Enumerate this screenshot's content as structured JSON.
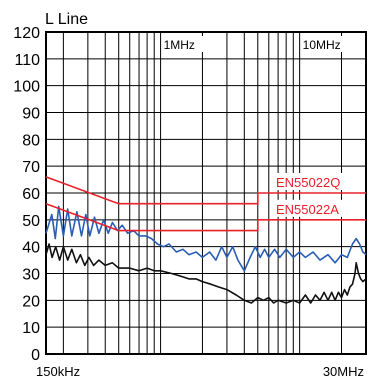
{
  "chart_data": {
    "type": "line",
    "title": "L Line",
    "x_scale": "log",
    "xlim_hz": [
      150000,
      30000000
    ],
    "ylim": [
      0,
      120
    ],
    "y_ticks": [
      0,
      10,
      20,
      30,
      40,
      50,
      60,
      70,
      80,
      90,
      100,
      110,
      120
    ],
    "y_tick_labels": [
      "0",
      "10",
      "20",
      "30",
      "40",
      "50",
      "60",
      "70",
      "80",
      "90",
      "100",
      "110",
      "120"
    ],
    "x_tick_labels": [
      {
        "hz": 150000,
        "label": "150kHz"
      },
      {
        "hz": 30000000,
        "label": "30MHz"
      }
    ],
    "top_labels": [
      {
        "hz": 1000000,
        "label": "1MHz"
      },
      {
        "hz": 10000000,
        "label": "10MHz"
      }
    ],
    "grid": true,
    "colors": {
      "limit": "#e8202a",
      "measured_peak": "#2a5db4",
      "measured_avg": "#111111",
      "grid": "#000000"
    },
    "limit_lines": [
      {
        "name": "EN55022Q",
        "points": [
          [
            150000,
            66
          ],
          [
            500000,
            56
          ],
          [
            5000000,
            56
          ],
          [
            5000000,
            60
          ],
          [
            30000000,
            60
          ]
        ]
      },
      {
        "name": "EN55022A",
        "points": [
          [
            150000,
            56
          ],
          [
            500000,
            46
          ],
          [
            5000000,
            46
          ],
          [
            5000000,
            50
          ],
          [
            30000000,
            50
          ]
        ]
      }
    ],
    "series": [
      {
        "points": [
          [
            150000,
            45
          ],
          [
            165000,
            52
          ],
          [
            175000,
            43
          ],
          [
            185000,
            55
          ],
          [
            200000,
            44
          ],
          [
            215000,
            54
          ],
          [
            230000,
            44
          ],
          [
            250000,
            53
          ],
          [
            270000,
            44
          ],
          [
            290000,
            52
          ],
          [
            310000,
            44
          ],
          [
            335000,
            51
          ],
          [
            360000,
            45
          ],
          [
            390000,
            50
          ],
          [
            420000,
            45
          ],
          [
            450000,
            49
          ],
          [
            490000,
            46
          ],
          [
            530000,
            48
          ],
          [
            580000,
            45
          ],
          [
            640000,
            46
          ],
          [
            700000,
            44
          ],
          [
            780000,
            44
          ],
          [
            860000,
            43
          ],
          [
            950000,
            41
          ],
          [
            1050000,
            40
          ],
          [
            1150000,
            41
          ],
          [
            1300000,
            38
          ],
          [
            1450000,
            39
          ],
          [
            1600000,
            37
          ],
          [
            1800000,
            38
          ],
          [
            2000000,
            36
          ],
          [
            2250000,
            38
          ],
          [
            2500000,
            35
          ],
          [
            2750000,
            40
          ],
          [
            3000000,
            36
          ],
          [
            3300000,
            40
          ],
          [
            3600000,
            35
          ],
          [
            4000000,
            31
          ],
          [
            4400000,
            36
          ],
          [
            4800000,
            40
          ],
          [
            5200000,
            36
          ],
          [
            5600000,
            39
          ],
          [
            6000000,
            36
          ],
          [
            6600000,
            39
          ],
          [
            7200000,
            36
          ],
          [
            8000000,
            39
          ],
          [
            9000000,
            36
          ],
          [
            10000000,
            38
          ],
          [
            11000000,
            36
          ],
          [
            12500000,
            38
          ],
          [
            14000000,
            35
          ],
          [
            16000000,
            37
          ],
          [
            18000000,
            34
          ],
          [
            20000000,
            37
          ],
          [
            22000000,
            36
          ],
          [
            24000000,
            41
          ],
          [
            25500000,
            43
          ],
          [
            27000000,
            41
          ],
          [
            28500000,
            38
          ],
          [
            30000000,
            37
          ]
        ]
      },
      {
        "points": [
          [
            150000,
            37
          ],
          [
            158000,
            41
          ],
          [
            166000,
            36
          ],
          [
            176000,
            40
          ],
          [
            188000,
            35
          ],
          [
            200000,
            40
          ],
          [
            215000,
            35
          ],
          [
            230000,
            39
          ],
          [
            248000,
            34
          ],
          [
            265000,
            37
          ],
          [
            285000,
            33
          ],
          [
            305000,
            36
          ],
          [
            330000,
            33
          ],
          [
            360000,
            35
          ],
          [
            400000,
            33
          ],
          [
            450000,
            34
          ],
          [
            500000,
            32
          ],
          [
            600000,
            32
          ],
          [
            700000,
            31
          ],
          [
            800000,
            32
          ],
          [
            900000,
            31
          ],
          [
            1000000,
            31
          ],
          [
            1200000,
            30
          ],
          [
            1400000,
            29
          ],
          [
            1600000,
            28
          ],
          [
            1800000,
            28
          ],
          [
            2000000,
            27
          ],
          [
            2300000,
            26
          ],
          [
            2600000,
            25
          ],
          [
            3000000,
            24
          ],
          [
            3500000,
            22
          ],
          [
            4000000,
            20
          ],
          [
            4500000,
            19
          ],
          [
            5000000,
            21
          ],
          [
            5500000,
            20
          ],
          [
            6000000,
            21
          ],
          [
            6500000,
            19
          ],
          [
            7000000,
            20
          ],
          [
            8000000,
            19
          ],
          [
            9000000,
            20
          ],
          [
            10000000,
            19
          ],
          [
            11000000,
            22
          ],
          [
            12000000,
            19
          ],
          [
            13000000,
            22
          ],
          [
            14000000,
            20
          ],
          [
            15000000,
            23
          ],
          [
            16000000,
            20
          ],
          [
            17000000,
            23
          ],
          [
            18000000,
            20
          ],
          [
            19000000,
            23
          ],
          [
            20000000,
            21
          ],
          [
            21000000,
            24
          ],
          [
            22000000,
            22
          ],
          [
            23000000,
            25
          ],
          [
            24000000,
            26
          ],
          [
            25000000,
            30
          ],
          [
            25500000,
            34
          ],
          [
            26500000,
            30
          ],
          [
            27500000,
            28
          ],
          [
            28500000,
            27
          ],
          [
            30000000,
            28
          ]
        ]
      }
    ]
  }
}
